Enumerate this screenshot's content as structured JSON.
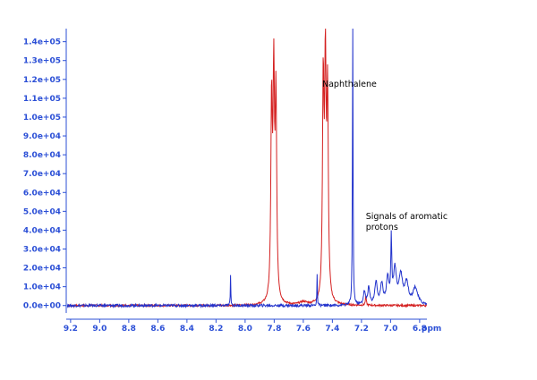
{
  "chart_data": {
    "type": "line",
    "xlabel": "ppm",
    "x_reversed": true,
    "xlim": [
      9.23,
      6.75
    ],
    "ylim": [
      -2500,
      146000
    ],
    "x_ticks": [
      "9.2",
      "9.0",
      "8.8",
      "8.6",
      "8.4",
      "8.2",
      "8.0",
      "7.8",
      "7.6",
      "7.4",
      "7.2",
      "7.0",
      "6.8"
    ],
    "y_ticks": [
      "0.0e+00",
      "1.0e+04",
      "2.0e+04",
      "3.0e+04",
      "4.0e+04",
      "5.0e+04",
      "6.0e+04",
      "7.0e+04",
      "8.0e+04",
      "9.0e+04",
      "1.0e+05",
      "1.1e+05",
      "1.2e+05",
      "1.3e+05",
      "1.4e+05"
    ],
    "annotations": [
      {
        "lines": [
          "Naphthalene"
        ],
        "x": 7.47,
        "y": 116000
      },
      {
        "lines": [
          "Signals of aromatic",
          "protons"
        ],
        "x": 7.17,
        "y": 46000
      }
    ],
    "series": [
      {
        "color": "#d42020",
        "peaks": [
          {
            "x": 7.818,
            "h": 103000,
            "w": 0.006
          },
          {
            "x": 7.803,
            "h": 113000,
            "w": 0.006
          },
          {
            "x": 7.788,
            "h": 105000,
            "w": 0.006
          },
          {
            "x": 7.463,
            "h": 114000,
            "w": 0.006
          },
          {
            "x": 7.448,
            "h": 121000,
            "w": 0.006
          },
          {
            "x": 7.433,
            "h": 106000,
            "w": 0.006
          },
          {
            "x": 7.6,
            "h": 1500,
            "w": 0.03
          },
          {
            "x": 7.17,
            "h": 4500,
            "w": 0.004
          }
        ],
        "noise": 500
      },
      {
        "color": "#2233cc",
        "peaks": [
          {
            "x": 8.1,
            "h": 16000,
            "w": 0.002
          },
          {
            "x": 7.505,
            "h": 16000,
            "w": 0.002
          },
          {
            "x": 7.26,
            "h": 150000,
            "w": 0.0025
          },
          {
            "x": 7.18,
            "h": 7000,
            "w": 0.008
          },
          {
            "x": 7.15,
            "h": 9000,
            "w": 0.008
          },
          {
            "x": 7.1,
            "h": 12000,
            "w": 0.01
          },
          {
            "x": 7.06,
            "h": 11000,
            "w": 0.01
          },
          {
            "x": 7.02,
            "h": 14000,
            "w": 0.01
          },
          {
            "x": 6.995,
            "h": 33000,
            "w": 0.004
          },
          {
            "x": 6.97,
            "h": 18000,
            "w": 0.012
          },
          {
            "x": 6.93,
            "h": 15000,
            "w": 0.015
          },
          {
            "x": 6.89,
            "h": 11000,
            "w": 0.015
          },
          {
            "x": 6.83,
            "h": 9000,
            "w": 0.02
          }
        ],
        "noise": 700
      }
    ]
  }
}
